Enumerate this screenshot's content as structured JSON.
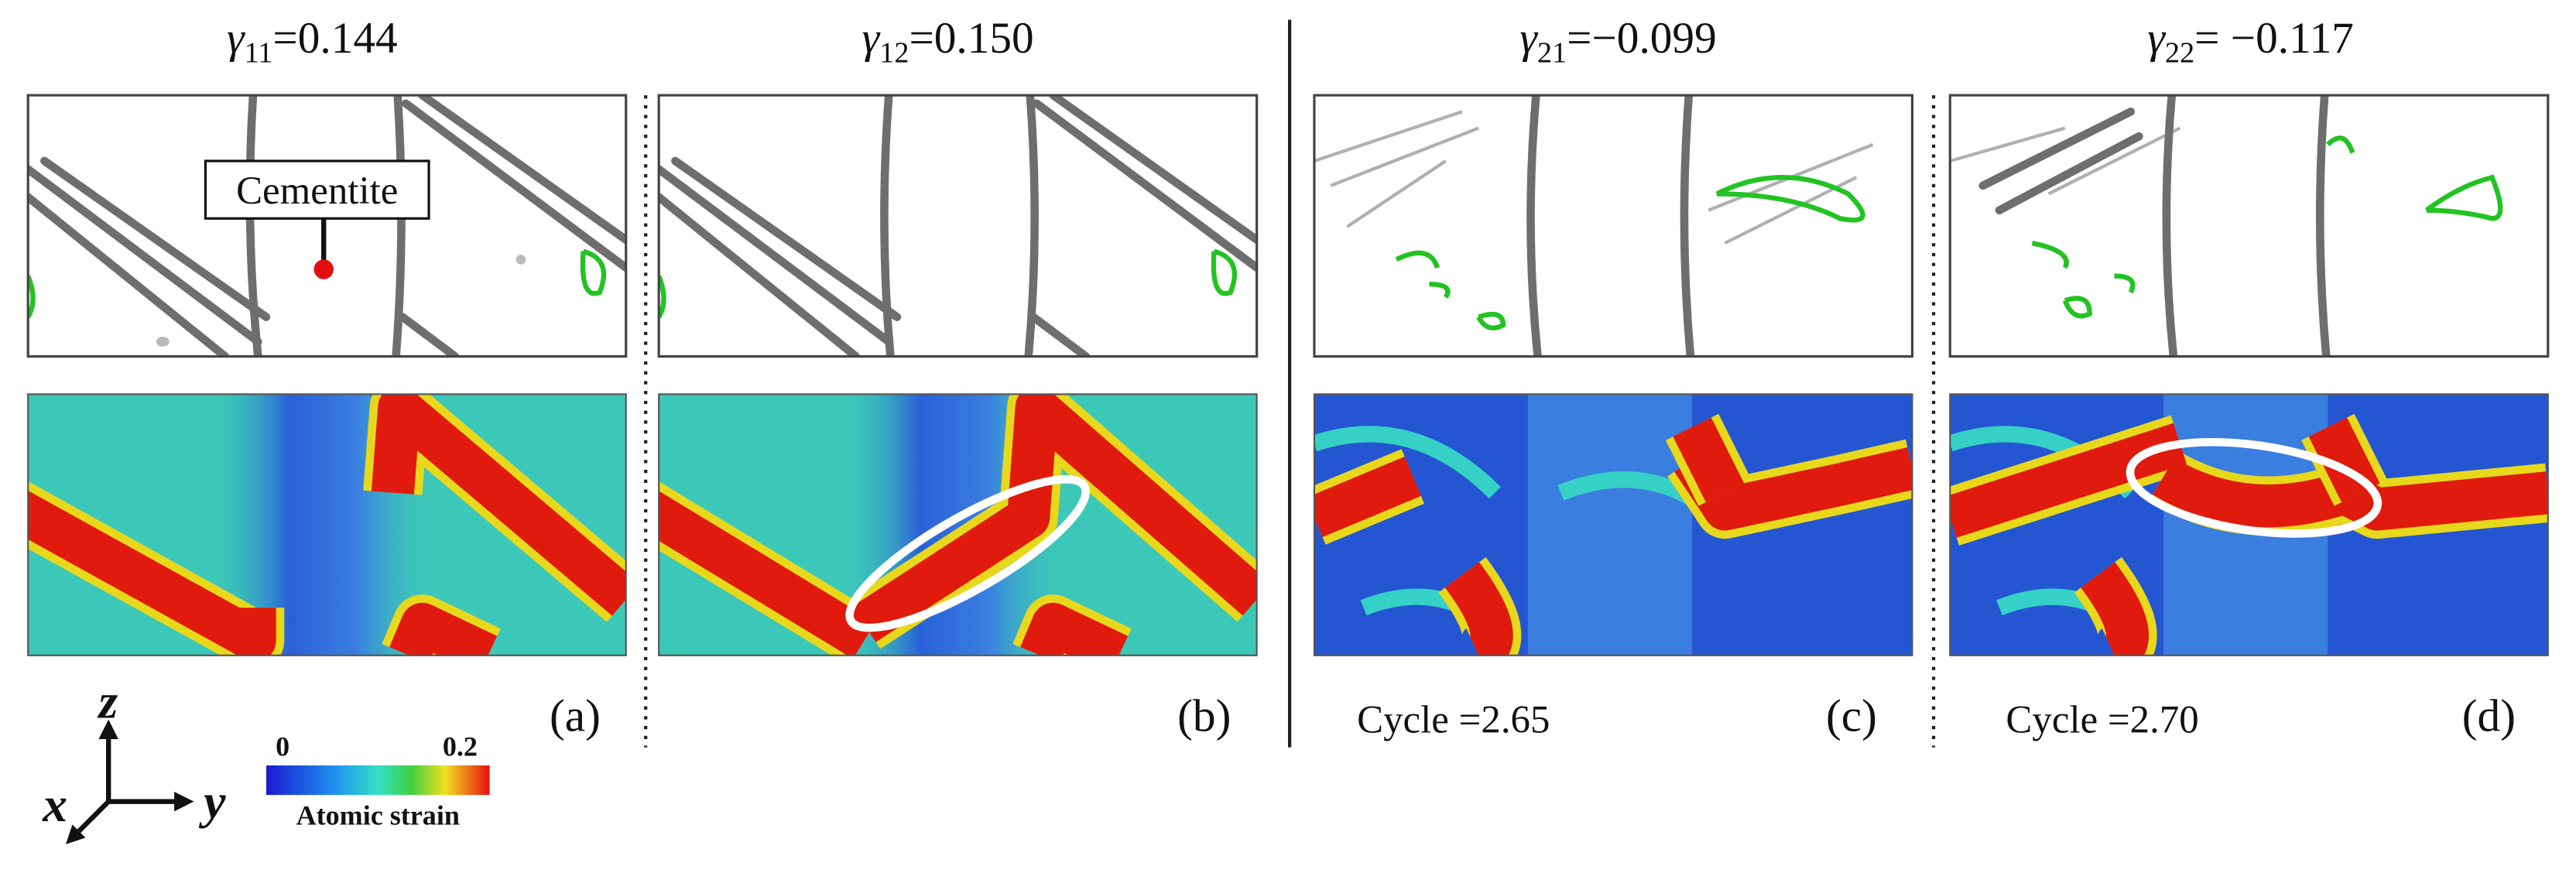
{
  "panels": [
    {
      "symbol": "γ",
      "subscript": "11",
      "value": "=0.144",
      "label": "(a)"
    },
    {
      "symbol": "γ",
      "subscript": "12",
      "value": "=0.150",
      "label": "(b)"
    },
    {
      "symbol": "γ",
      "subscript": "21",
      "value": "=−0.099",
      "label": "(c)",
      "cycle": "Cycle =2.65"
    },
    {
      "symbol": "γ",
      "subscript": "22",
      "value": "= −0.117",
      "label": "(d)",
      "cycle": "Cycle =2.70"
    }
  ],
  "annotation": "Cementite",
  "colorbar": {
    "min_label": "0",
    "max_label": "0.2",
    "title": "Atomic strain"
  },
  "axes": {
    "z": "z",
    "x": "x",
    "y": "y"
  }
}
